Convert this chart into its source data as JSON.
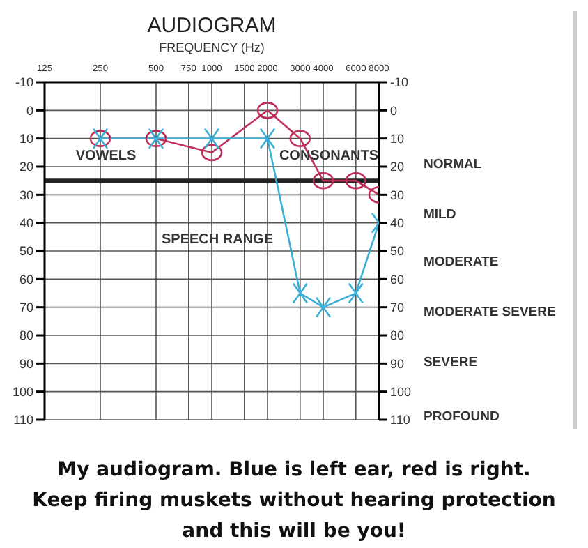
{
  "chart_data": {
    "type": "line",
    "title": "AUDIOGRAM",
    "xlabel": "FREQUENCY (Hz)",
    "xlim": [
      125,
      8000
    ],
    "xticks": [
      125,
      250,
      500,
      750,
      1000,
      1500,
      2000,
      3000,
      4000,
      6000,
      8000
    ],
    "log": "x",
    "ylim": [
      110,
      -10
    ],
    "yticks": [
      -10,
      0,
      10,
      20,
      30,
      40,
      50,
      60,
      70,
      80,
      90,
      100,
      110
    ],
    "y2lim": [
      110,
      -10
    ],
    "y2ticks": [
      -10,
      0,
      10,
      20,
      30,
      40,
      50,
      60,
      70,
      80,
      90,
      100,
      110
    ],
    "grid": true,
    "legend": false,
    "series": [
      {
        "color": "#c0305a",
        "marker": "circle",
        "x": [
          250,
          500,
          1000,
          2000,
          3000,
          4000,
          6000,
          8000
        ],
        "values": [
          10,
          10,
          15,
          0,
          10,
          25,
          25,
          30
        ]
      },
      {
        "color": "#3ab0d8",
        "marker": "cross",
        "x": [
          250,
          500,
          1000,
          2000,
          3000,
          4000,
          6000,
          8000
        ],
        "values": [
          10,
          10,
          10,
          10,
          65,
          70,
          65,
          40
        ]
      }
    ],
    "ref_lines": [
      {
        "axis": "y",
        "value": 25,
        "color": "#222222"
      }
    ],
    "annotations": [
      "VOWELS",
      "CONSONANTS",
      "SPEECH RANGE",
      "NORMAL",
      "MILD",
      "MODERATE",
      "MODERATE SEVERE",
      "SEVERE",
      "PROFOUND",
      "My audiogram. Blue is left ear, red is right. Keep firing muskets without hearing protection and this will be you!"
    ]
  }
}
